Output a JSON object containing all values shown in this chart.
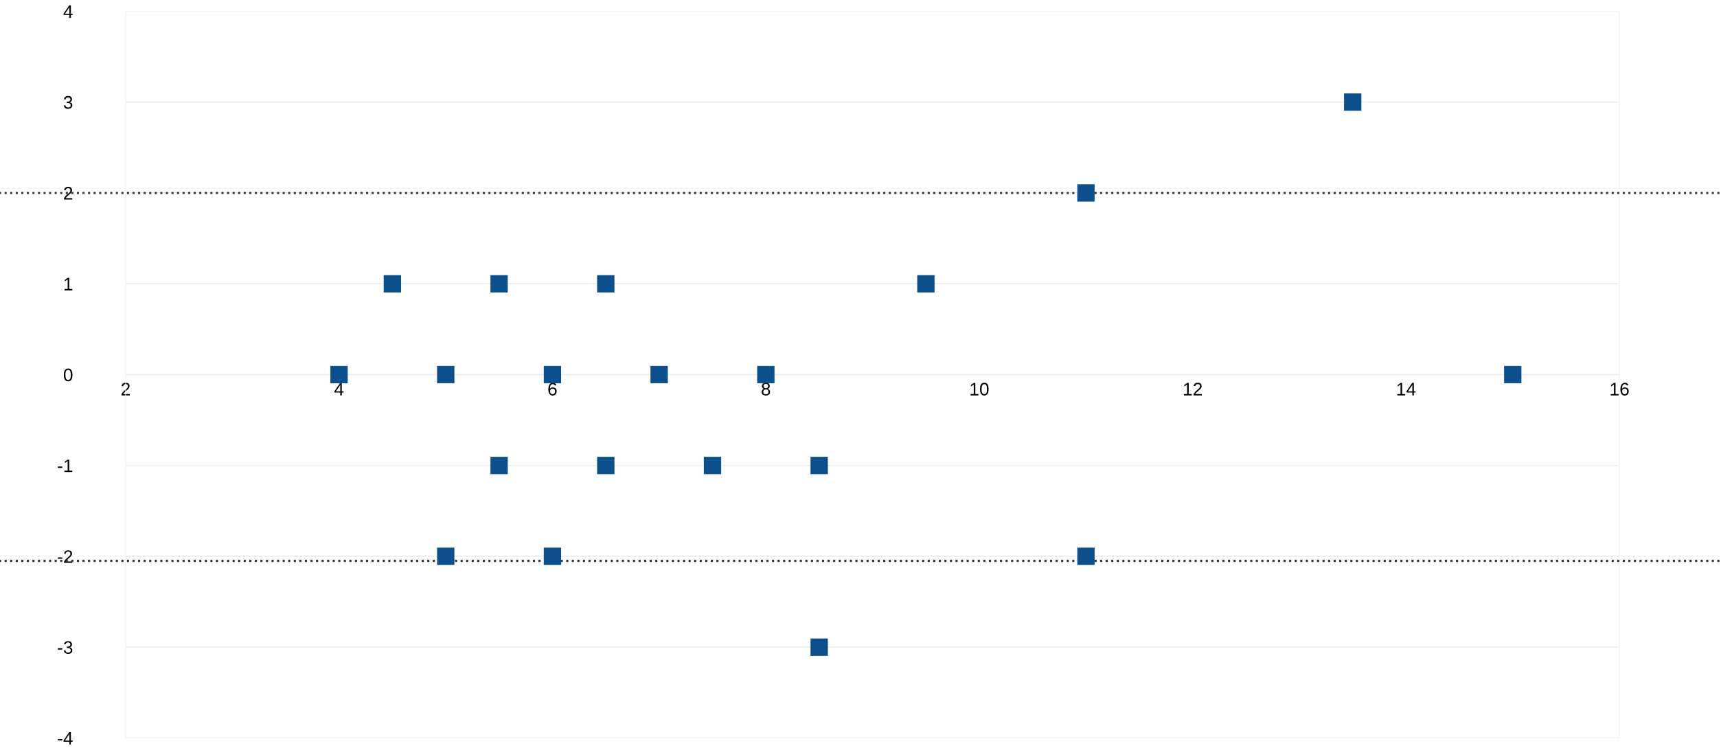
{
  "chart_data": {
    "type": "scatter",
    "color": "#0b4f8c",
    "marker": "square",
    "x": [
      4,
      4.5,
      5,
      5.5,
      6.5,
      5.5,
      5,
      6,
      6,
      6.5,
      7,
      7.5,
      8,
      8.5,
      8.5,
      9.5,
      11,
      11,
      13.5,
      15
    ],
    "values": [
      0,
      1,
      0,
      1,
      1,
      -1,
      -2,
      0,
      -2,
      -1,
      0,
      -1,
      0,
      -1,
      -3,
      1,
      2,
      -2,
      3,
      0
    ],
    "xlim": [
      2,
      16
    ],
    "xticks": [
      2,
      4,
      6,
      8,
      10,
      12,
      14,
      16
    ],
    "ylim": [
      -4,
      4
    ],
    "yticks": [
      -4,
      -3,
      -2,
      -1,
      0,
      1,
      2,
      3,
      4
    ],
    "grid": "y",
    "ref_lines": [
      {
        "axis": "y",
        "value": 2,
        "color": "#333333",
        "line_style": "dotted"
      },
      {
        "axis": "y",
        "value": -2.05,
        "color": "#333333",
        "line_style": "dotted"
      }
    ]
  }
}
